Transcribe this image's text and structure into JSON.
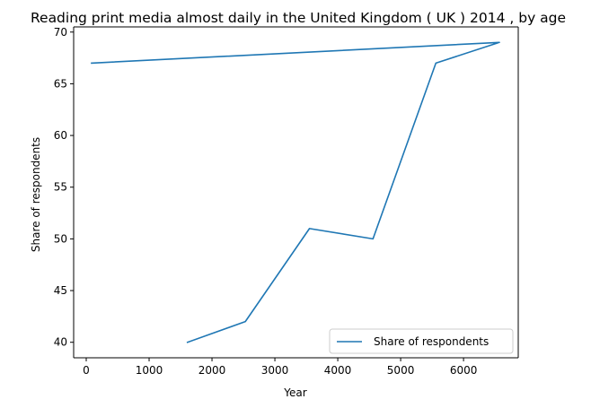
{
  "chart_data": {
    "type": "line",
    "title": "Reading print media almost daily in the United Kingdom ( UK ) 2014 , by age",
    "xlabel": "Year",
    "ylabel": "Share of respondents",
    "xlim": [
      -200,
      6870
    ],
    "ylim": [
      38.5,
      70.5
    ],
    "x_ticks": [
      0,
      1000,
      2000,
      3000,
      4000,
      5000,
      6000
    ],
    "y_ticks": [
      40,
      45,
      50,
      55,
      60,
      65,
      70
    ],
    "grid": false,
    "legend_position": "lower-right",
    "series": [
      {
        "name": "Share of respondents",
        "color": "#1f77b4",
        "x": [
          1610,
          2530,
          3550,
          4560,
          5560,
          6570,
          85
        ],
        "y": [
          40,
          42,
          51,
          50,
          67,
          69,
          67
        ]
      }
    ]
  }
}
